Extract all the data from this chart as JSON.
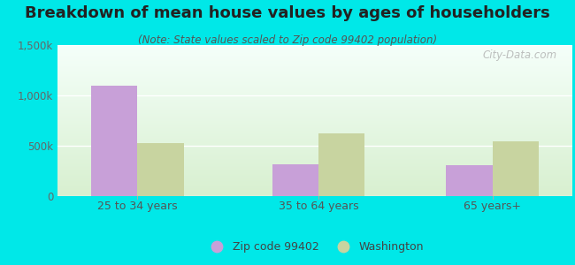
{
  "title": "Breakdown of mean house values by ages of householders",
  "subtitle": "(Note: State values scaled to Zip code 99402 population)",
  "categories": [
    "25 to 34 years",
    "35 to 64 years",
    "65 years+"
  ],
  "zip_values": [
    1100000,
    320000,
    305000
  ],
  "wa_values": [
    530000,
    620000,
    540000
  ],
  "zip_color": "#c8a0d8",
  "wa_color": "#c8d4a0",
  "bg_outer": "#00e8e8",
  "bg_plot_top": "#f5fffa",
  "bg_plot_bottom": "#d8f0d0",
  "ylim": [
    0,
    1500000
  ],
  "yticks": [
    0,
    500000,
    1000000,
    1500000
  ],
  "ytick_labels": [
    "0",
    "500k",
    "1,000k",
    "1,500k"
  ],
  "legend_zip_label": "Zip code 99402",
  "legend_wa_label": "Washington",
  "watermark": "City-Data.com",
  "bar_width": 0.32,
  "title_fontsize": 13,
  "subtitle_fontsize": 8.5,
  "tick_fontsize": 8.5,
  "xtick_fontsize": 9
}
